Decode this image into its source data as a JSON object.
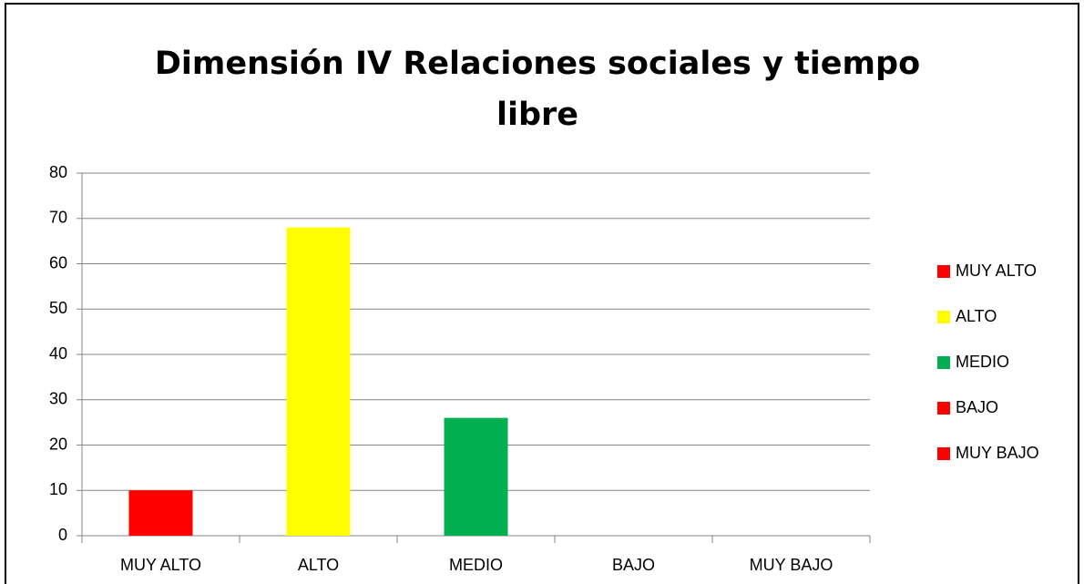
{
  "chart_data": {
    "type": "bar",
    "title": "Dimensión IV Relaciones sociales y tiempo libre",
    "categories": [
      "MUY ALTO",
      "ALTO",
      "MEDIO",
      "BAJO",
      "MUY BAJO"
    ],
    "values": [
      10,
      68,
      26,
      0,
      0
    ],
    "colors": [
      "#ff0000",
      "#ffff00",
      "#00b050",
      "#ff0000",
      "#ff0000"
    ],
    "ylim": [
      0,
      80
    ],
    "yticks": [
      0,
      10,
      20,
      30,
      40,
      50,
      60,
      70,
      80
    ],
    "grid": true,
    "legend": "right"
  }
}
